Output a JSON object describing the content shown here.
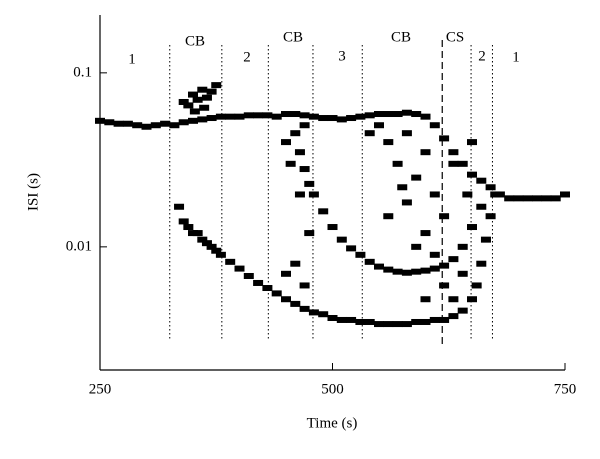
{
  "chart_data": {
    "type": "scatter",
    "xlabel": "Time (s)",
    "ylabel": "ISI (s)",
    "xlim": [
      250,
      750
    ],
    "xticks": [
      250,
      500,
      750
    ],
    "ylim": [
      0.00196,
      0.215
    ],
    "yticks": [
      0.01,
      0.1
    ],
    "ylog": true,
    "color": "#000000",
    "vlines": [
      {
        "x": 325,
        "style": "dotted"
      },
      {
        "x": 381,
        "style": "dotted"
      },
      {
        "x": 431,
        "style": "dotted"
      },
      {
        "x": 479,
        "style": "dotted"
      },
      {
        "x": 532,
        "style": "dotted"
      },
      {
        "x": 618,
        "style": "dashed"
      },
      {
        "x": 649,
        "style": "dotted"
      },
      {
        "x": 672,
        "style": "dotted"
      }
    ],
    "annotations": [
      "1",
      "CB",
      "2",
      "CB",
      "3",
      "CB",
      "CS",
      "2",
      "1"
    ],
    "x": [
      250,
      260,
      270,
      280,
      290,
      300,
      310,
      320,
      330,
      340,
      350,
      360,
      370,
      380,
      390,
      400,
      410,
      420,
      430,
      440,
      450,
      460,
      470,
      480,
      490,
      500,
      510,
      520,
      530,
      540,
      550,
      560,
      570,
      580,
      590,
      600,
      610,
      620,
      630,
      640,
      650,
      660,
      670,
      680,
      690,
      700,
      710,
      720,
      730,
      740,
      750,
      345,
      350,
      355,
      360,
      365,
      370,
      375,
      352,
      340,
      362,
      335,
      340,
      345,
      350,
      355,
      360,
      365,
      370,
      375,
      380,
      390,
      400,
      410,
      420,
      430,
      440,
      450,
      460,
      470,
      480,
      490,
      500,
      510,
      520,
      530,
      540,
      550,
      560,
      570,
      580,
      590,
      600,
      610,
      620,
      630,
      640,
      650,
      655,
      660,
      665,
      670,
      675,
      460,
      465,
      470,
      475,
      480,
      490,
      500,
      510,
      520,
      530,
      540,
      550,
      560,
      570,
      580,
      590,
      600,
      610,
      620,
      630,
      640,
      650,
      660,
      560,
      570,
      580,
      590,
      600,
      610,
      620,
      630,
      600,
      580,
      620,
      600,
      640,
      560,
      550,
      590,
      610,
      630,
      645,
      575,
      540,
      650,
      450,
      460,
      470,
      455,
      465,
      475,
      450,
      470
    ],
    "y": [
      0.053,
      0.052,
      0.051,
      0.051,
      0.05,
      0.049,
      0.05,
      0.051,
      0.05,
      0.052,
      0.053,
      0.054,
      0.055,
      0.056,
      0.056,
      0.056,
      0.057,
      0.057,
      0.057,
      0.056,
      0.058,
      0.058,
      0.057,
      0.056,
      0.055,
      0.055,
      0.054,
      0.055,
      0.056,
      0.057,
      0.058,
      0.058,
      0.058,
      0.059,
      0.058,
      0.056,
      0.05,
      0.042,
      0.035,
      0.03,
      0.026,
      0.024,
      0.022,
      0.02,
      0.019,
      0.019,
      0.019,
      0.019,
      0.019,
      0.019,
      0.02,
      0.065,
      0.075,
      0.07,
      0.08,
      0.072,
      0.078,
      0.085,
      0.06,
      0.068,
      0.063,
      0.017,
      0.014,
      0.013,
      0.012,
      0.012,
      0.011,
      0.0105,
      0.01,
      0.0095,
      0.009,
      0.0082,
      0.0075,
      0.0068,
      0.0062,
      0.0058,
      0.0054,
      0.005,
      0.0047,
      0.0044,
      0.0042,
      0.0041,
      0.0039,
      0.0038,
      0.0038,
      0.0037,
      0.0037,
      0.0036,
      0.0036,
      0.0036,
      0.0036,
      0.0037,
      0.0037,
      0.0038,
      0.0038,
      0.004,
      0.0043,
      0.005,
      0.006,
      0.008,
      0.011,
      0.015,
      0.02,
      0.045,
      0.035,
      0.028,
      0.023,
      0.02,
      0.016,
      0.013,
      0.011,
      0.0098,
      0.009,
      0.0082,
      0.0077,
      0.0074,
      0.0072,
      0.0071,
      0.0072,
      0.0073,
      0.0075,
      0.0078,
      0.0085,
      0.01,
      0.013,
      0.017,
      0.04,
      0.03,
      0.045,
      0.025,
      0.035,
      0.02,
      0.015,
      0.03,
      0.012,
      0.018,
      0.006,
      0.005,
      0.007,
      0.015,
      0.05,
      0.01,
      0.009,
      0.005,
      0.02,
      0.022,
      0.045,
      0.04,
      0.007,
      0.008,
      0.006,
      0.03,
      0.02,
      0.012,
      0.04,
      0.05
    ]
  }
}
